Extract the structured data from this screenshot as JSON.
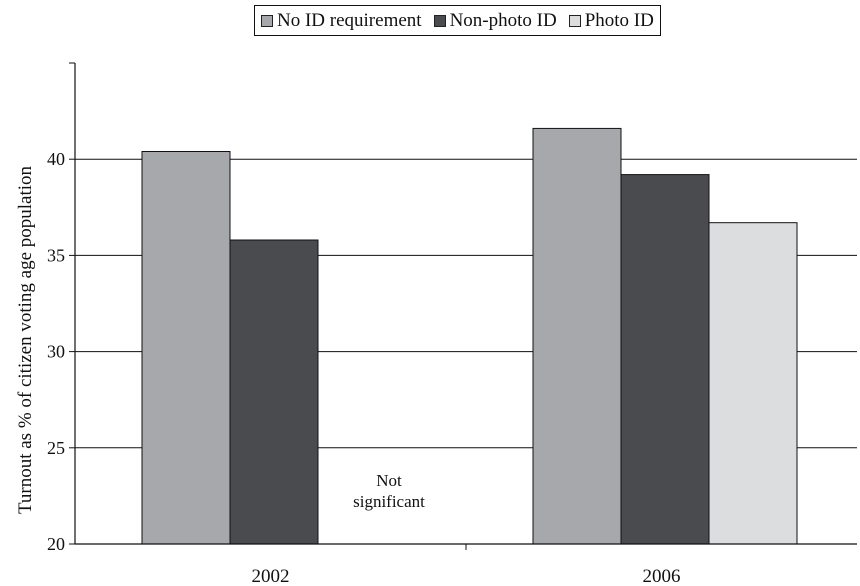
{
  "chart_data": {
    "type": "bar",
    "categories": [
      "2002",
      "2006"
    ],
    "series": [
      {
        "name": "No ID requirement",
        "values": [
          40.4,
          41.6
        ],
        "color": "#a7a8ac"
      },
      {
        "name": "Non-photo ID",
        "values": [
          35.8,
          39.2
        ],
        "color": "#4a4b4e"
      },
      {
        "name": "Photo ID",
        "values": [
          null,
          36.7
        ],
        "color": "#dcdddf"
      }
    ],
    "ylabel": "Turnout as % of citizen voting age population",
    "xlabel": "",
    "ylim": [
      20,
      45
    ],
    "yticks": [
      "20",
      "25",
      "30",
      "35",
      "40"
    ],
    "grid": true,
    "legend_position": "top",
    "annotation": {
      "line1": "Not",
      "line2": "significant"
    }
  }
}
